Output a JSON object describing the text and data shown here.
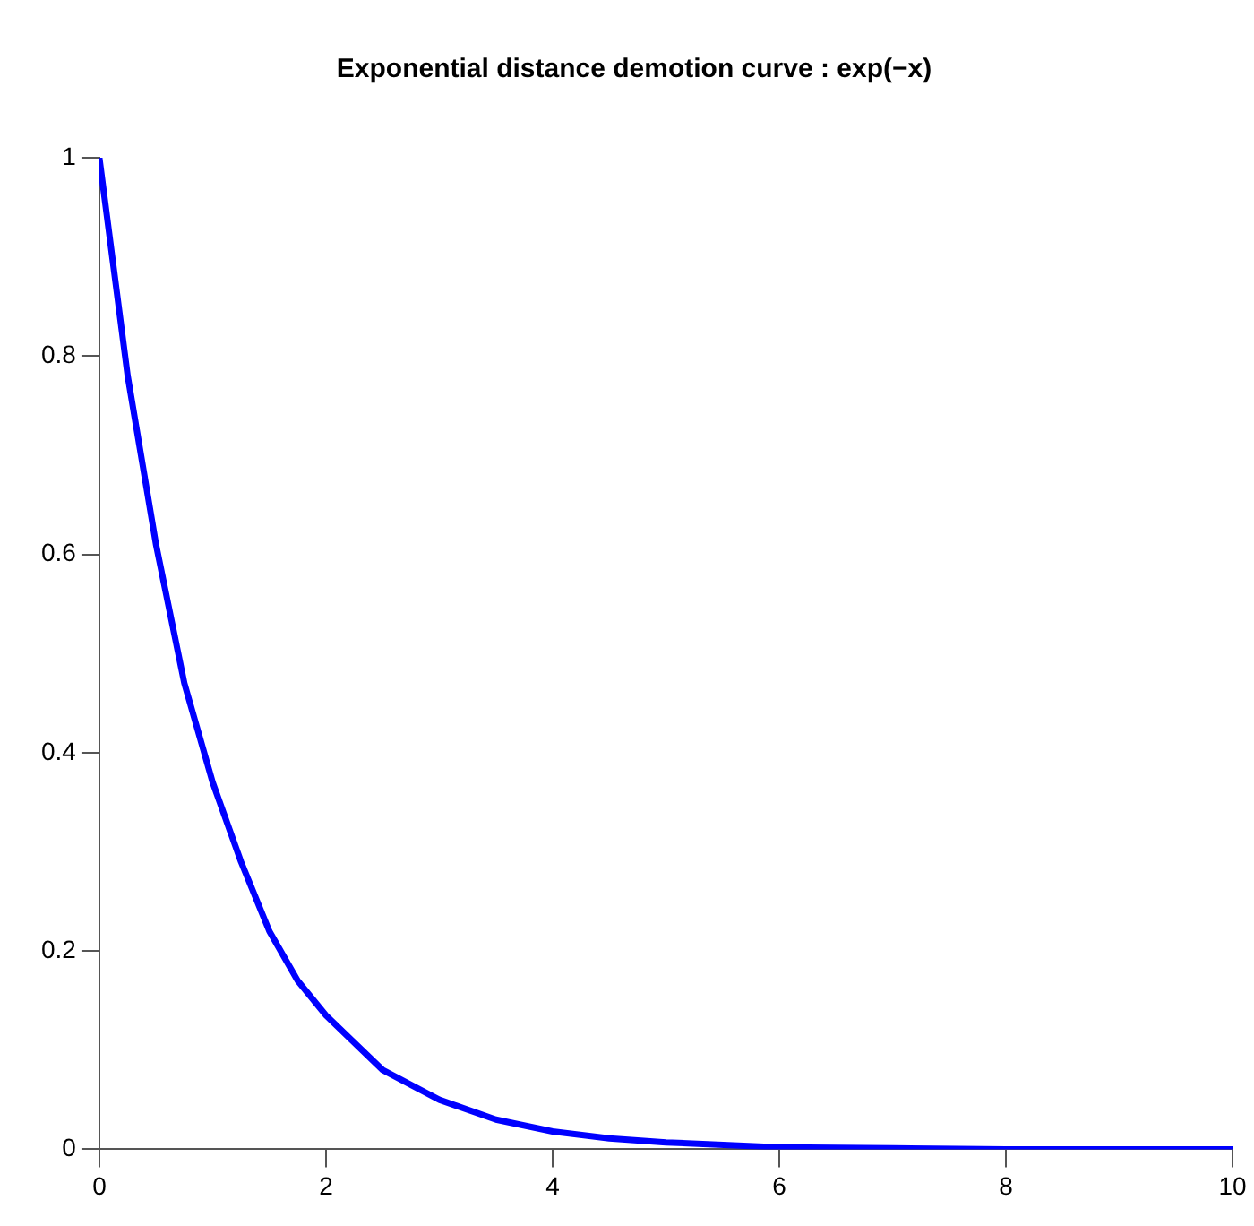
{
  "chart_data": {
    "type": "line",
    "title": "Exponential distance demotion curve : exp(−x)",
    "x": [
      0,
      0.25,
      0.5,
      0.75,
      1,
      1.25,
      1.5,
      1.75,
      2,
      2.5,
      3,
      3.5,
      4,
      4.5,
      5,
      6,
      7,
      8,
      9,
      10
    ],
    "series": [
      {
        "color": "#0000ff",
        "values": [
          1,
          0.78,
          0.61,
          0.47,
          0.37,
          0.29,
          0.22,
          0.17,
          0.135,
          0.08,
          0.05,
          0.03,
          0.018,
          0.011,
          0.007,
          0.002,
          0.001,
          0,
          0,
          0
        ]
      }
    ],
    "xlim": [
      0,
      10
    ],
    "ylim": [
      0,
      1
    ],
    "xticks": [
      0,
      2,
      4,
      6,
      8,
      10
    ],
    "yticks": [
      0,
      0.2,
      0.4,
      0.6,
      0.8,
      1
    ],
    "grid": false,
    "legend": false,
    "marker": "none",
    "line_style": "solid"
  }
}
